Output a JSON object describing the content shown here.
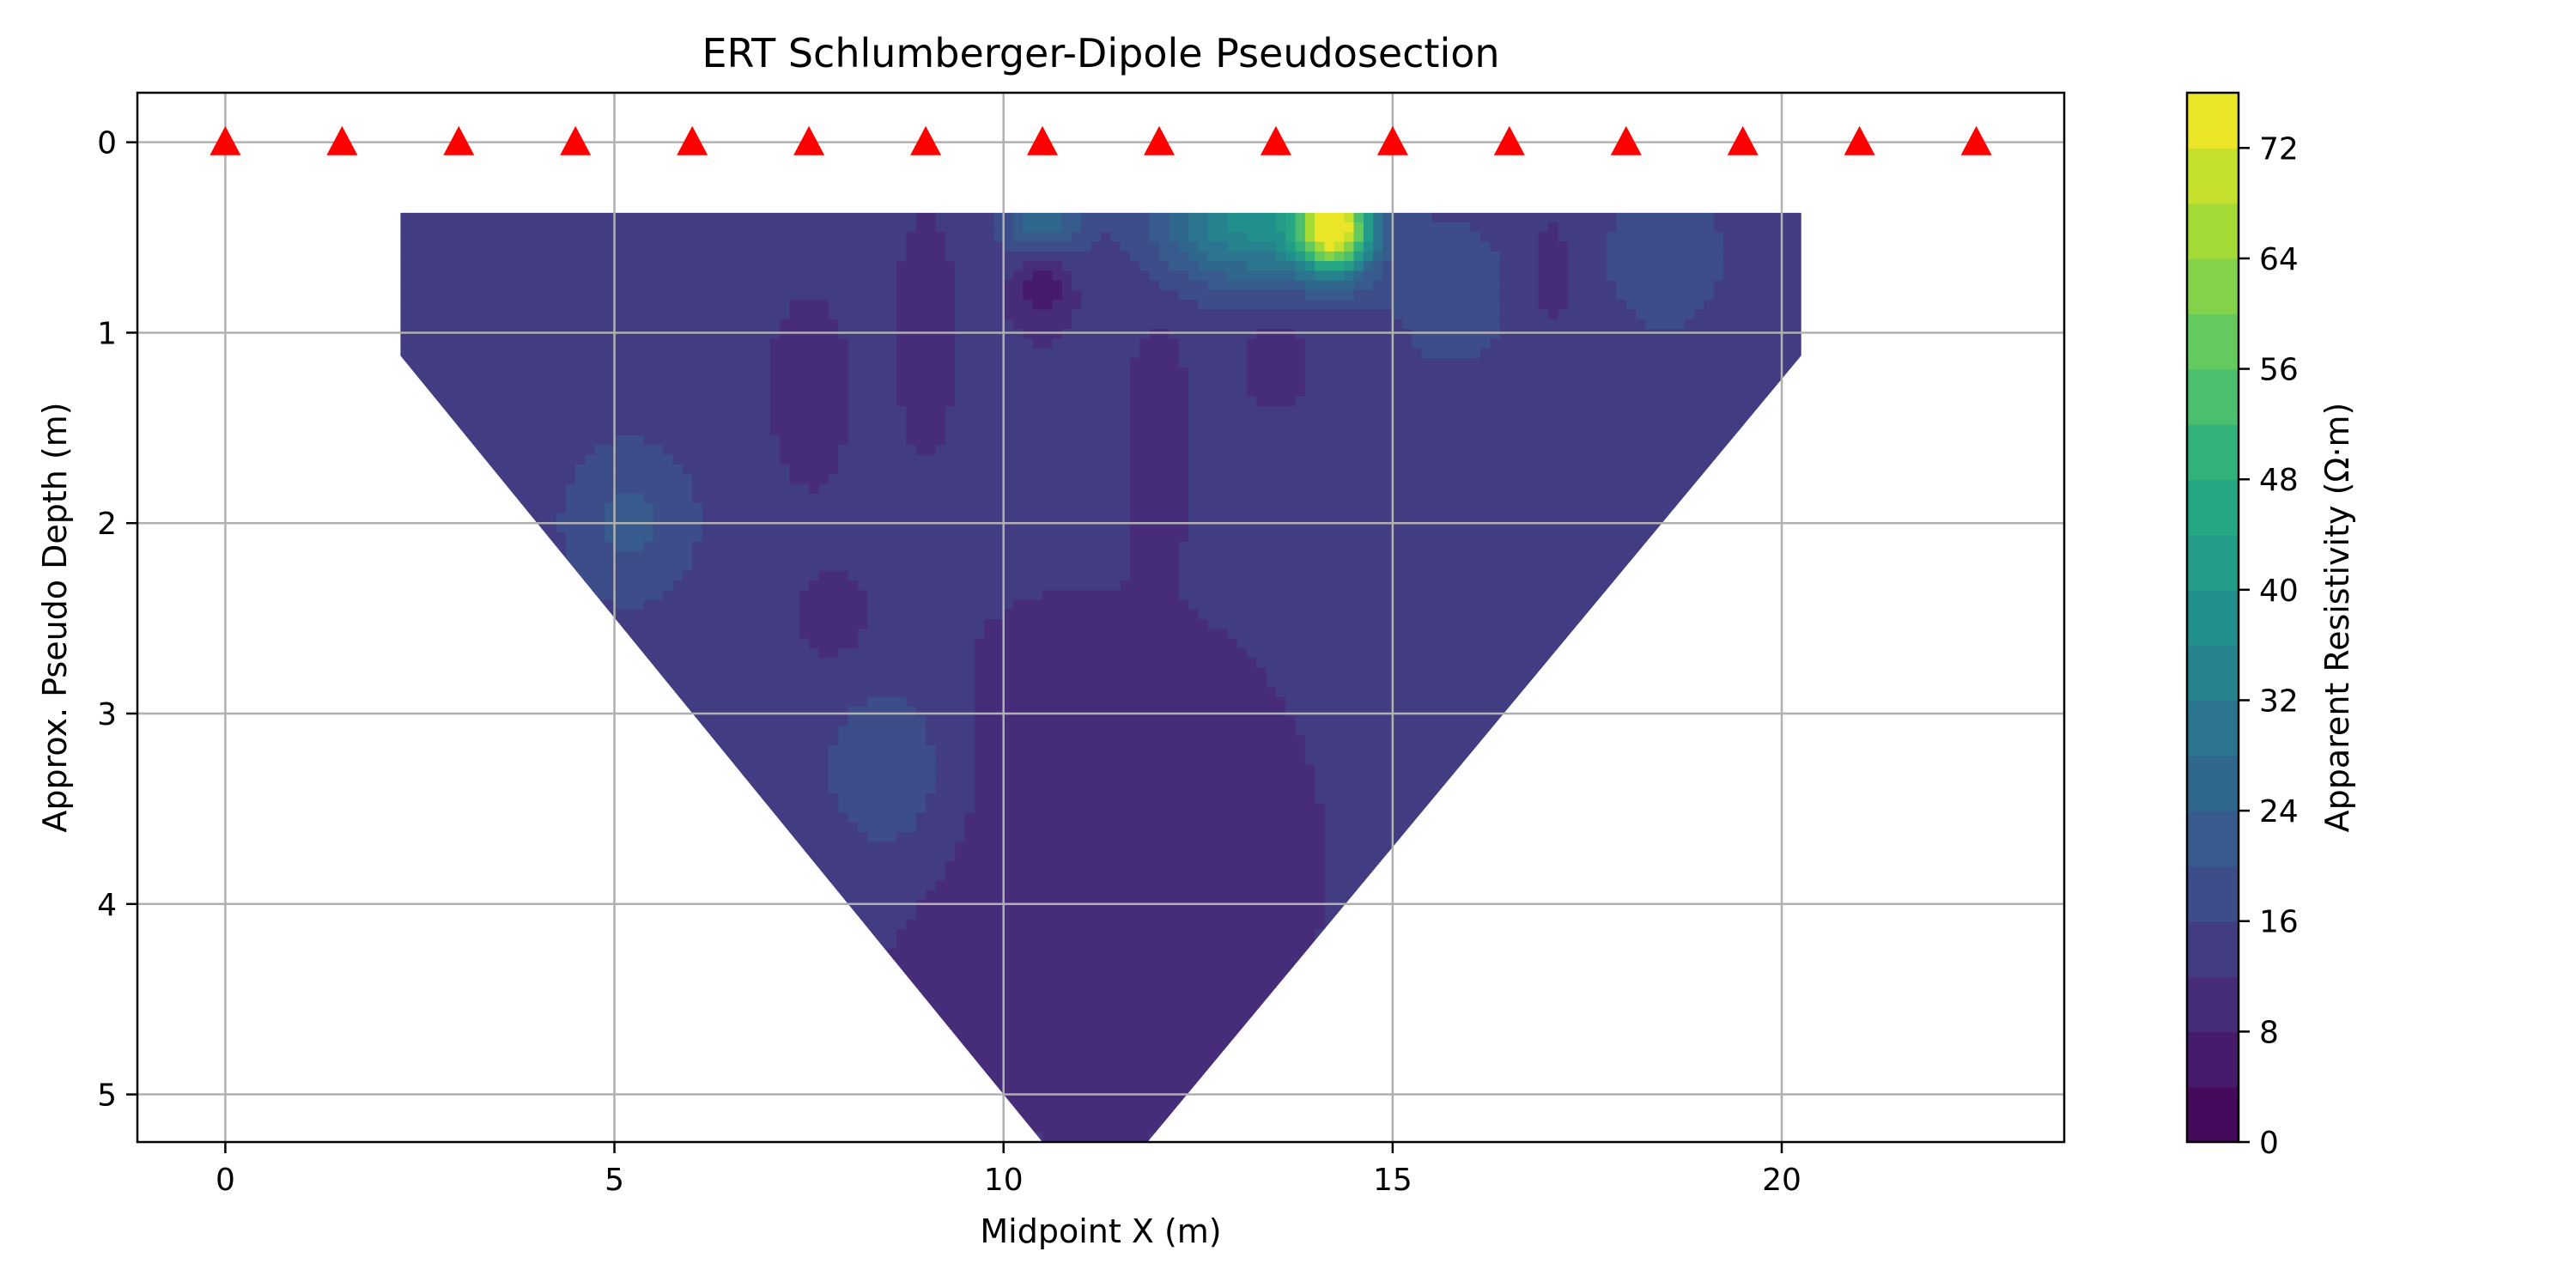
{
  "chart_data": {
    "type": "heatmap",
    "title": "ERT Schlumberger-Dipole Pseudosection",
    "xlabel": "Midpoint X (m)",
    "ylabel": "Approx. Pseudo Depth (m)",
    "xlim": [
      -1.13,
      23.63
    ],
    "ylim": [
      5.25,
      -0.26
    ],
    "y_inverted": true,
    "grid": true,
    "x_ticks": [
      0,
      5,
      10,
      15,
      20
    ],
    "y_ticks": [
      0,
      1,
      2,
      3,
      4,
      5
    ],
    "colormap": "viridis",
    "colorbar": {
      "label": "Apparent Resistivity (Ω·m)",
      "range": [
        0,
        76
      ],
      "level_step": 4,
      "ticks": [
        0,
        8,
        16,
        24,
        32,
        40,
        48,
        56,
        64,
        72
      ]
    },
    "electrodes": {
      "marker": "triangle",
      "color": "#ff0000",
      "depth": 0,
      "x": [
        0,
        1.5,
        3,
        4.5,
        6,
        7.5,
        9,
        10.5,
        12,
        13.5,
        15,
        16.5,
        18,
        19.5,
        21,
        22.5
      ]
    },
    "coverage_polygon": [
      [
        2.25,
        0.37
      ],
      [
        20.25,
        0.37
      ],
      [
        20.25,
        1.12
      ],
      [
        11.85,
        5.25
      ],
      [
        10.5,
        5.25
      ],
      [
        2.25,
        1.12
      ]
    ],
    "background_resistivity": 13,
    "anomalies": [
      {
        "x": 14.25,
        "z": 0.45,
        "value": 74,
        "sx": 0.45,
        "sz": 0.22
      },
      {
        "x": 13.2,
        "z": 0.4,
        "value": 38,
        "sx": 1.2,
        "sz": 0.35
      },
      {
        "x": 10.5,
        "z": 0.42,
        "value": 28,
        "sx": 0.5,
        "sz": 0.2
      },
      {
        "x": 5.2,
        "z": 2.0,
        "value": 21,
        "sx": 0.9,
        "sz": 0.45
      },
      {
        "x": 8.5,
        "z": 3.3,
        "value": 21,
        "sx": 0.8,
        "sz": 0.45
      },
      {
        "x": 18.5,
        "z": 0.6,
        "value": 20,
        "sx": 0.8,
        "sz": 0.4
      },
      {
        "x": 15.8,
        "z": 0.8,
        "value": 18,
        "sx": 1.0,
        "sz": 0.5
      },
      {
        "x": 10.5,
        "z": 0.75,
        "value": 5,
        "sx": 0.35,
        "sz": 0.22
      },
      {
        "x": 9.0,
        "z": 1.0,
        "value": 8,
        "sx": 0.3,
        "sz": 0.5
      },
      {
        "x": 12.0,
        "z": 1.5,
        "value": 8,
        "sx": 0.3,
        "sz": 0.5
      },
      {
        "x": 13.5,
        "z": 1.15,
        "value": 8,
        "sx": 0.35,
        "sz": 0.2
      },
      {
        "x": 11.2,
        "z": 3.8,
        "value": 10,
        "sx": 2.8,
        "sz": 1.4
      },
      {
        "x": 7.5,
        "z": 1.3,
        "value": 11,
        "sx": 0.6,
        "sz": 0.6
      },
      {
        "x": 7.8,
        "z": 2.5,
        "value": 10,
        "sx": 0.4,
        "sz": 0.2
      },
      {
        "x": 17.0,
        "z": 0.7,
        "value": 10,
        "sx": 0.4,
        "sz": 0.4
      }
    ]
  }
}
